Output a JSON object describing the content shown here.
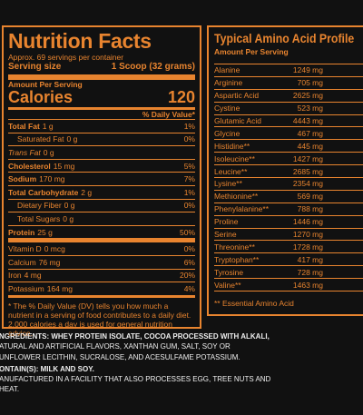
{
  "nutrition": {
    "title": "Nutrition Facts",
    "servings": "Approx. 69 servings per container",
    "serving_size_label": "Serving size",
    "serving_size_value": "1 Scoop (32 grams)",
    "amount_per_serving": "Amount Per Serving",
    "calories_label": "Calories",
    "calories_value": "120",
    "daily_value_header": "% Daily Value*",
    "rows": [
      {
        "label": "Total Fat",
        "amount": "1 g",
        "dv": "1%"
      },
      {
        "label": "Saturated Fat",
        "amount": "0 g",
        "dv": "0%"
      },
      {
        "label": "Trans Fat",
        "amount": "0 g"
      },
      {
        "label": "Cholesterol",
        "amount": "15 mg",
        "dv": "5%"
      },
      {
        "label": "Sodium",
        "amount": "170 mg",
        "dv": "7%"
      },
      {
        "label": "Total Carbohydrate",
        "amount": "2 g",
        "dv": "1%"
      },
      {
        "label": "Dietary Fiber",
        "amount": "0 g",
        "dv": "0%"
      },
      {
        "label": "Total Sugars",
        "amount": "0 g"
      },
      {
        "label": "Protein",
        "amount": "25 g",
        "dv": "50%"
      },
      {
        "label": "Vitamin D",
        "amount": "0 mcg",
        "dv": "0%"
      },
      {
        "label": "Calcium",
        "amount": "76 mg",
        "dv": "6%"
      },
      {
        "label": "Iron",
        "amount": "4 mg",
        "dv": "20%"
      },
      {
        "label": "Potassium",
        "amount": "164 mg",
        "dv": "4%"
      }
    ],
    "footnote": "* The % Daily Value (DV) tells you how much a nutrient in a serving of food contributes to a daily diet. 2,000 calories a day is used for general nutrition advice."
  },
  "amino": {
    "title": "Typical Amino Acid Profile",
    "amount_per_serving": "Amount Per Serving",
    "rows": [
      {
        "name": "Alanine",
        "amount": "1249 mg",
        "mark": "*"
      },
      {
        "name": "Arginine",
        "amount": "705 mg",
        "mark": "*"
      },
      {
        "name": "Aspartic Acid",
        "amount": "2625 mg",
        "mark": "*"
      },
      {
        "name": "Cystine",
        "amount": "523 mg",
        "mark": "*"
      },
      {
        "name": "Glutamic Acid",
        "amount": "4443 mg",
        "mark": "*"
      },
      {
        "name": "Glycine",
        "amount": "467 mg",
        "mark": "*"
      },
      {
        "name": "Histidine**",
        "amount": "445 mg",
        "mark": "*"
      },
      {
        "name": "Isoleucine**",
        "amount": "1427 mg",
        "mark": "*"
      },
      {
        "name": "Leucine**",
        "amount": "2685 mg",
        "mark": "*"
      },
      {
        "name": "Lysine**",
        "amount": "2354 mg",
        "mark": "*"
      },
      {
        "name": "Methionine**",
        "amount": "569 mg",
        "mark": "*"
      },
      {
        "name": "Phenylalanine**",
        "amount": "788 mg",
        "mark": "*"
      },
      {
        "name": "Proline",
        "amount": "1446 mg",
        "mark": "*"
      },
      {
        "name": "Serine",
        "amount": "1270 mg",
        "mark": "*"
      },
      {
        "name": "Threonine**",
        "amount": "1728 mg",
        "mark": "*"
      },
      {
        "name": "Tryptophan**",
        "amount": "417 mg",
        "mark": "*"
      },
      {
        "name": "Tyrosine",
        "amount": "728 mg",
        "mark": "*"
      },
      {
        "name": "Valine**",
        "amount": "1463 mg",
        "mark": "*"
      }
    ],
    "footnote": "** Essential Amino Acid"
  },
  "ingredients": [
    "NGREDIENTS: WHEY PROTEIN ISOLATE, COCOA PROCESSED WITH ALKALI,",
    "ATURAL AND ARTIFICIAL FLAVORS, XANTHAN GUM, SALT, SOY OR",
    "UNFLOWER LECITHIN, SUCRALOSE, AND ACESULFAME POTASSIUM.",
    "ONTAIN(S): MILK AND SOY.",
    "ANUFACTURED IN A FACILITY THAT ALSO PROCESSES EGG, TREE NUTS AND",
    "HEAT."
  ]
}
